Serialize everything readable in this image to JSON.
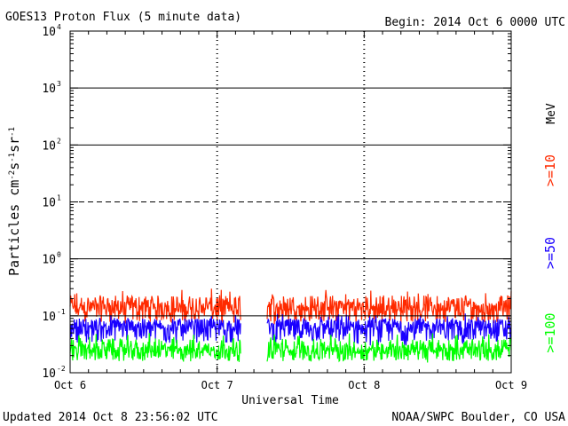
{
  "header": {
    "title": "GOES13 Proton Flux (5 minute data)",
    "begin": "Begin: 2014 Oct 6 0000 UTC"
  },
  "footer": {
    "updated": "Updated 2014 Oct  8 23:56:02 UTC",
    "source": "NOAA/SWPC Boulder, CO USA"
  },
  "chart_data": {
    "type": "line",
    "title": "GOES13 Proton Flux (5 minute data)",
    "xlabel": "Universal Time",
    "ylabel": "Particles cm-2s-1sr-1",
    "ylabel_parts": {
      "a": "Particles cm",
      "b": "-2",
      "c": "s",
      "d": "-1",
      "e": "sr",
      "f": "-1"
    },
    "yscale": "log",
    "ylim": [
      0.01,
      10000
    ],
    "xlim_days": [
      0,
      3
    ],
    "x_tick_labels": [
      "Oct 6",
      "Oct 7",
      "Oct 8",
      "Oct 9"
    ],
    "y_tick_labels": [
      {
        "base": "10",
        "exp": "-2"
      },
      {
        "base": "10",
        "exp": "-1"
      },
      {
        "base": "10",
        "exp": "0"
      },
      {
        "base": "10",
        "exp": "1"
      },
      {
        "base": "10",
        "exp": "2"
      },
      {
        "base": "10",
        "exp": "3"
      },
      {
        "base": "10",
        "exp": "4"
      }
    ],
    "reference_lines": [
      {
        "y": 0.1,
        "style": "solid"
      },
      {
        "y": 1,
        "style": "solid"
      },
      {
        "y": 10,
        "style": "dashed"
      },
      {
        "y": 100,
        "style": "solid"
      },
      {
        "y": 1000,
        "style": "solid"
      }
    ],
    "units_label": "MeV",
    "data_gap_days": [
      1.16,
      1.34
    ],
    "series": [
      {
        "name": ">=10",
        "color": "#ff2a00",
        "typical": 0.12,
        "range": [
          0.07,
          0.3
        ]
      },
      {
        "name": ">=50",
        "color": "#1a00ff",
        "typical": 0.055,
        "range": [
          0.03,
          0.11
        ]
      },
      {
        "name": ">=100",
        "color": "#00ff00",
        "typical": 0.022,
        "range": [
          0.015,
          0.05
        ]
      }
    ]
  }
}
